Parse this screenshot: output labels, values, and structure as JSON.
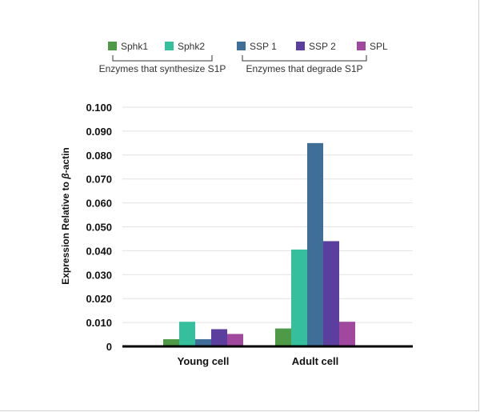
{
  "chart_data": {
    "type": "bar",
    "categories": [
      "Young cell",
      "Adult cell"
    ],
    "series": [
      {
        "name": "Sphk1",
        "color": "#4e9a47",
        "values": [
          0.003,
          0.0075
        ]
      },
      {
        "name": "Sphk2",
        "color": "#35bf9c",
        "values": [
          0.0103,
          0.0405
        ]
      },
      {
        "name": "SSP 1",
        "color": "#3f6e99",
        "values": [
          0.003,
          0.085
        ]
      },
      {
        "name": "SSP 2",
        "color": "#5a3f9e",
        "values": [
          0.0072,
          0.044
        ]
      },
      {
        "name": "SPL",
        "color": "#a0479e",
        "values": [
          0.0052,
          0.0103
        ]
      }
    ],
    "ylabel_prefix": "Expression Relative to ",
    "ylabel_symbol": "β",
    "ylabel_suffix": "-actin",
    "ylim": [
      0,
      0.1
    ],
    "yticks": [
      "0",
      "0.010",
      "0.020",
      "0.030",
      "0.040",
      "0.050",
      "0.060",
      "0.070",
      "0.080",
      "0.090",
      "0.100"
    ],
    "grid": true,
    "legend_position": "top",
    "legend_groups": [
      {
        "label": "Enzymes that synthesize S1P",
        "members": [
          "Sphk1",
          "Sphk2"
        ]
      },
      {
        "label": "Enzymes that degrade S1P",
        "members": [
          "SSP 1",
          "SSP 2",
          "SPL"
        ]
      }
    ]
  }
}
